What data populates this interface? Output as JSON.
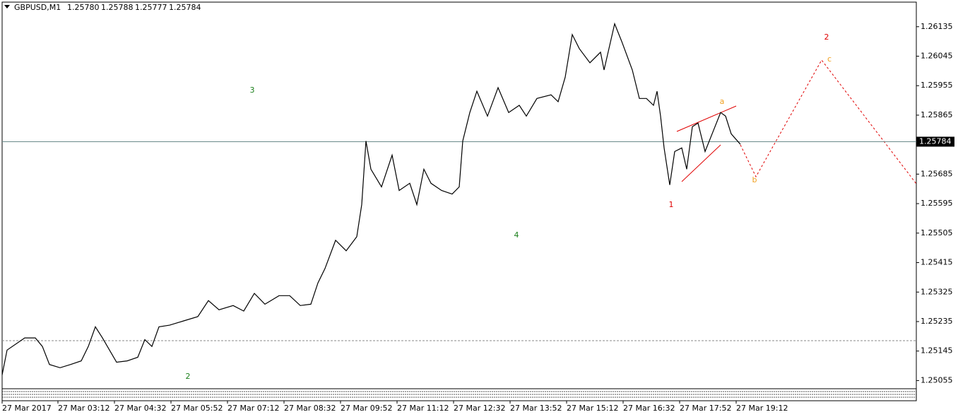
{
  "chart_data": {
    "type": "line",
    "symbol": "GBPUSD,M1",
    "ohlc": [
      "1.25780",
      "1.25788",
      "1.25777",
      "1.25784"
    ],
    "last_price": 1.25784,
    "series": [
      {
        "name": "GBPUSD,M1",
        "color": "#000000",
        "x": [
          0,
          7,
          32,
          47,
          57,
          67,
          82,
          97,
          112,
          122,
          132,
          142,
          152,
          162,
          177,
          192,
          202,
          212,
          222,
          237,
          257,
          277,
          292,
          307,
          327,
          342,
          357,
          372,
          392,
          407,
          422,
          437,
          447,
          457,
          472,
          487,
          502,
          509,
          515,
          522,
          537,
          552,
          562,
          577,
          587,
          597,
          607,
          622,
          637,
          647,
          652,
          662,
          672,
          687,
          702,
          717,
          732,
          742,
          757,
          777,
          787,
          797,
          807,
          817,
          832,
          847,
          852,
          867,
          877,
          892,
          902,
          912,
          922,
          927,
          932,
          937,
          945,
          952,
          962,
          969,
          977,
          985,
          995,
          1007,
          1017,
          1024,
          1032,
          1045
        ],
        "values": [
          1.25072,
          1.25148,
          1.25185,
          1.25185,
          1.25159,
          1.25104,
          1.25094,
          1.25104,
          1.25115,
          1.25159,
          1.25219,
          1.25185,
          1.25148,
          1.25111,
          1.25115,
          1.25126,
          1.2518,
          1.25159,
          1.25219,
          1.25224,
          1.25237,
          1.2525,
          1.25299,
          1.25271,
          1.25284,
          1.25267,
          1.25321,
          1.25288,
          1.25314,
          1.25314,
          1.25284,
          1.25288,
          1.25353,
          1.25397,
          1.25483,
          1.25451,
          1.25494,
          1.25592,
          1.25786,
          1.257,
          1.25646,
          1.25743,
          1.25635,
          1.25657,
          1.25592,
          1.257,
          1.25657,
          1.25635,
          1.25624,
          1.25646,
          1.25786,
          1.25873,
          1.25938,
          1.25862,
          1.25949,
          1.25873,
          1.25895,
          1.25862,
          1.25916,
          1.25927,
          1.25906,
          1.25981,
          1.26111,
          1.26068,
          1.26025,
          1.26057,
          1.26003,
          1.26144,
          1.2609,
          1.26003,
          1.25916,
          1.25916,
          1.25895,
          1.25938,
          1.25862,
          1.25765,
          1.25652,
          1.25754,
          1.25765,
          1.257,
          1.2583,
          1.25841,
          1.25754,
          1.25819,
          1.25873,
          1.25862,
          1.25808,
          1.25776
        ]
      }
    ],
    "xlim": [
      0,
      1294
    ],
    "ylim": [
      1.2503,
      1.2621
    ],
    "yticks": [
      1.26135,
      1.26045,
      1.25955,
      1.25865,
      1.25685,
      1.25595,
      1.25505,
      1.25415,
      1.25325,
      1.25235,
      1.25145,
      1.25055
    ],
    "xticks": [
      {
        "value": 0,
        "label": "27 Mar 2017"
      },
      {
        "value": 79,
        "label": "27 Mar 03:12"
      },
      {
        "value": 159,
        "label": "27 Mar 04:32"
      },
      {
        "value": 239,
        "label": "27 Mar 05:52"
      },
      {
        "value": 319,
        "label": "27 Mar 07:12"
      },
      {
        "value": 399,
        "label": "27 Mar 08:32"
      },
      {
        "value": 479,
        "label": "27 Mar 09:52"
      },
      {
        "value": 559,
        "label": "27 Mar 11:12"
      },
      {
        "value": 639,
        "label": "27 Mar 12:32"
      },
      {
        "value": 719,
        "label": "27 Mar 13:52"
      },
      {
        "value": 799,
        "label": "27 Mar 15:12"
      },
      {
        "value": 879,
        "label": "27 Mar 16:32"
      },
      {
        "value": 959,
        "label": "27 Mar 17:52"
      },
      {
        "value": 1039,
        "label": "27 Mar 19:12"
      }
    ],
    "annotations": [
      {
        "text": "3",
        "color": "#1a7f1a"
      },
      {
        "text": "4",
        "color": "#1a7f1a"
      },
      {
        "text": "2",
        "color": "#1a7f1a"
      },
      {
        "text": "1",
        "color": "#e00000"
      },
      {
        "text": "2",
        "color": "#e00000"
      },
      {
        "text": "a",
        "color": "#f0a020"
      },
      {
        "text": "b",
        "color": "#f0a020"
      },
      {
        "text": "c",
        "color": "#f0a020"
      }
    ]
  }
}
